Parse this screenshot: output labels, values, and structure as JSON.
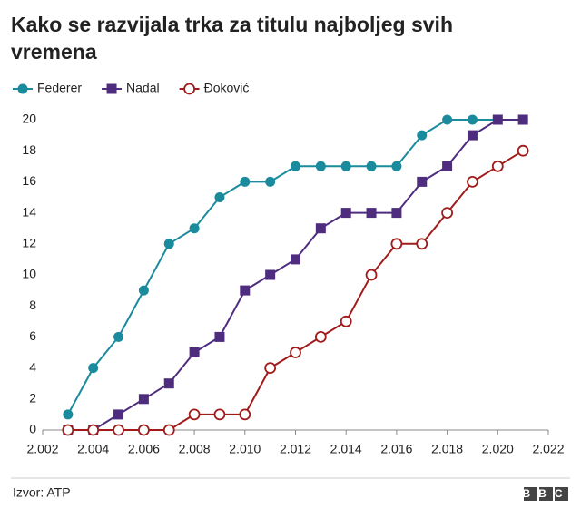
{
  "chart_data": {
    "type": "line",
    "title": "Kako se razvijala trka za titulu najboljeg svih vremena",
    "x": [
      2003,
      2004,
      2005,
      2006,
      2007,
      2008,
      2009,
      2010,
      2011,
      2012,
      2013,
      2014,
      2015,
      2016,
      2017,
      2018,
      2019,
      2020,
      2021
    ],
    "series": [
      {
        "name": "Federer",
        "color": "#1a8b9d",
        "marker": "circle",
        "values": [
          1,
          4,
          6,
          9,
          12,
          13,
          15,
          16,
          16,
          17,
          17,
          17,
          17,
          17,
          19,
          20,
          20,
          20,
          20
        ]
      },
      {
        "name": "Nadal",
        "color": "#4e2d7f",
        "marker": "square",
        "values": [
          0,
          0,
          1,
          2,
          3,
          5,
          6,
          9,
          10,
          11,
          13,
          14,
          14,
          14,
          16,
          17,
          19,
          20,
          20
        ]
      },
      {
        "name": "Đoković",
        "color": "#a11b1b",
        "marker": "hollow-circle",
        "values": [
          0,
          0,
          0,
          0,
          0,
          1,
          1,
          1,
          4,
          5,
          6,
          7,
          10,
          12,
          12,
          14,
          16,
          17,
          18
        ]
      }
    ],
    "xlim": [
      2002,
      2022
    ],
    "xticks": [
      {
        "value": 2002,
        "label": "2.002"
      },
      {
        "value": 2004,
        "label": "2.004"
      },
      {
        "value": 2006,
        "label": "2.006"
      },
      {
        "value": 2008,
        "label": "2.008"
      },
      {
        "value": 2010,
        "label": "2.010"
      },
      {
        "value": 2012,
        "label": "2.012"
      },
      {
        "value": 2014,
        "label": "2.014"
      },
      {
        "value": 2016,
        "label": "2.016"
      },
      {
        "value": 2018,
        "label": "2.018"
      },
      {
        "value": 2020,
        "label": "2.020"
      },
      {
        "value": 2022,
        "label": "2.022"
      }
    ],
    "ylim": [
      0,
      20
    ],
    "yticks": [
      0,
      2,
      4,
      6,
      8,
      10,
      12,
      14,
      16,
      18,
      20
    ],
    "grid": false,
    "source": "Izvor: ATP",
    "logo": "BBC"
  }
}
